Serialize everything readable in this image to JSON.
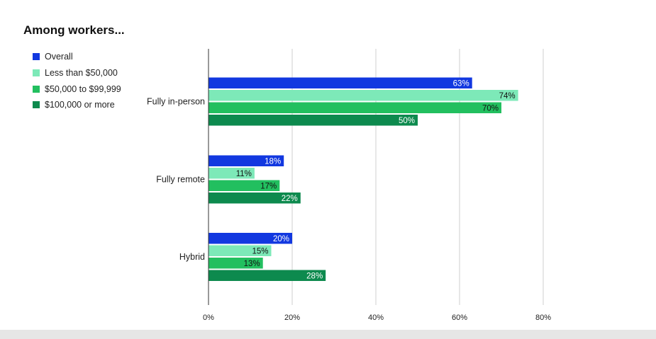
{
  "chart_data": {
    "type": "bar",
    "orientation": "horizontal",
    "title": "Among workers...",
    "categories": [
      "Fully in-person",
      "Fully remote",
      "Hybrid"
    ],
    "series": [
      {
        "name": "Overall",
        "color": "#1238e0",
        "label_color": "#ffffff",
        "values": [
          63,
          18,
          20
        ],
        "labels": [
          "63%",
          "18%",
          "20%"
        ]
      },
      {
        "name": "Less than $50,000",
        "color": "#7de9b8",
        "label_color": "#111111",
        "values": [
          74,
          11,
          15
        ],
        "labels": [
          "74%",
          "11%",
          "15%"
        ]
      },
      {
        "name": "$50,000 to $99,999",
        "color": "#22bf5f",
        "label_color": "#111111",
        "values": [
          70,
          17,
          13
        ],
        "labels": [
          "70%",
          "17%",
          "13%"
        ]
      },
      {
        "name": "$100,000 or more",
        "color": "#0d8a4e",
        "label_color": "#ffffff",
        "values": [
          50,
          22,
          28
        ],
        "labels": [
          "50%",
          "22%",
          "28%"
        ]
      }
    ],
    "x_ticks": [
      0,
      20,
      40,
      60,
      80
    ],
    "x_tick_labels": [
      "0%",
      "20%",
      "40%",
      "60%",
      "80%"
    ],
    "xlim": [
      0,
      80
    ],
    "grid": true,
    "legend_position": "top-left"
  }
}
